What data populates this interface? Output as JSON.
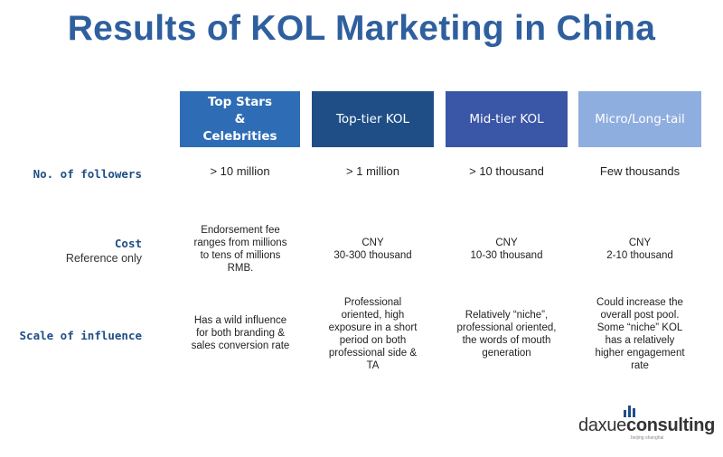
{
  "title": "Results of KOL Marketing in China",
  "columns": [
    {
      "label": "Top Stars\n&\nCelebrities"
    },
    {
      "label": "Top-tier KOL"
    },
    {
      "label": "Mid-tier KOL"
    },
    {
      "label": "Micro/Long-tail"
    }
  ],
  "rows": {
    "followers": {
      "label": "No. of followers",
      "values": [
        "> 10 million",
        "> 1 million",
        "> 10 thousand",
        "Few thousands"
      ]
    },
    "cost": {
      "label": "Cost",
      "sublabel": "Reference only",
      "values": [
        "Endorsement fee ranges from millions to tens of millions RMB.",
        "CNY\n30-300  thousand",
        "CNY\n10-30  thousand",
        "CNY\n2-10  thousand"
      ]
    },
    "influence": {
      "label": "Scale of influence",
      "values": [
        "Has a wild influence for both branding & sales conversion rate",
        "Professional oriented, high exposure in a short period on both professional side & TA",
        "Relatively “niche”, professional oriented, the words of mouth generation",
        "Could increase the overall post pool. Some “niche” KOL has a relatively higher engagement rate"
      ]
    }
  },
  "logo": {
    "text_light": "daxue",
    "text_bold": "consulting",
    "tagline": "beijing·shanghai",
    "color": "#1f4e87"
  }
}
